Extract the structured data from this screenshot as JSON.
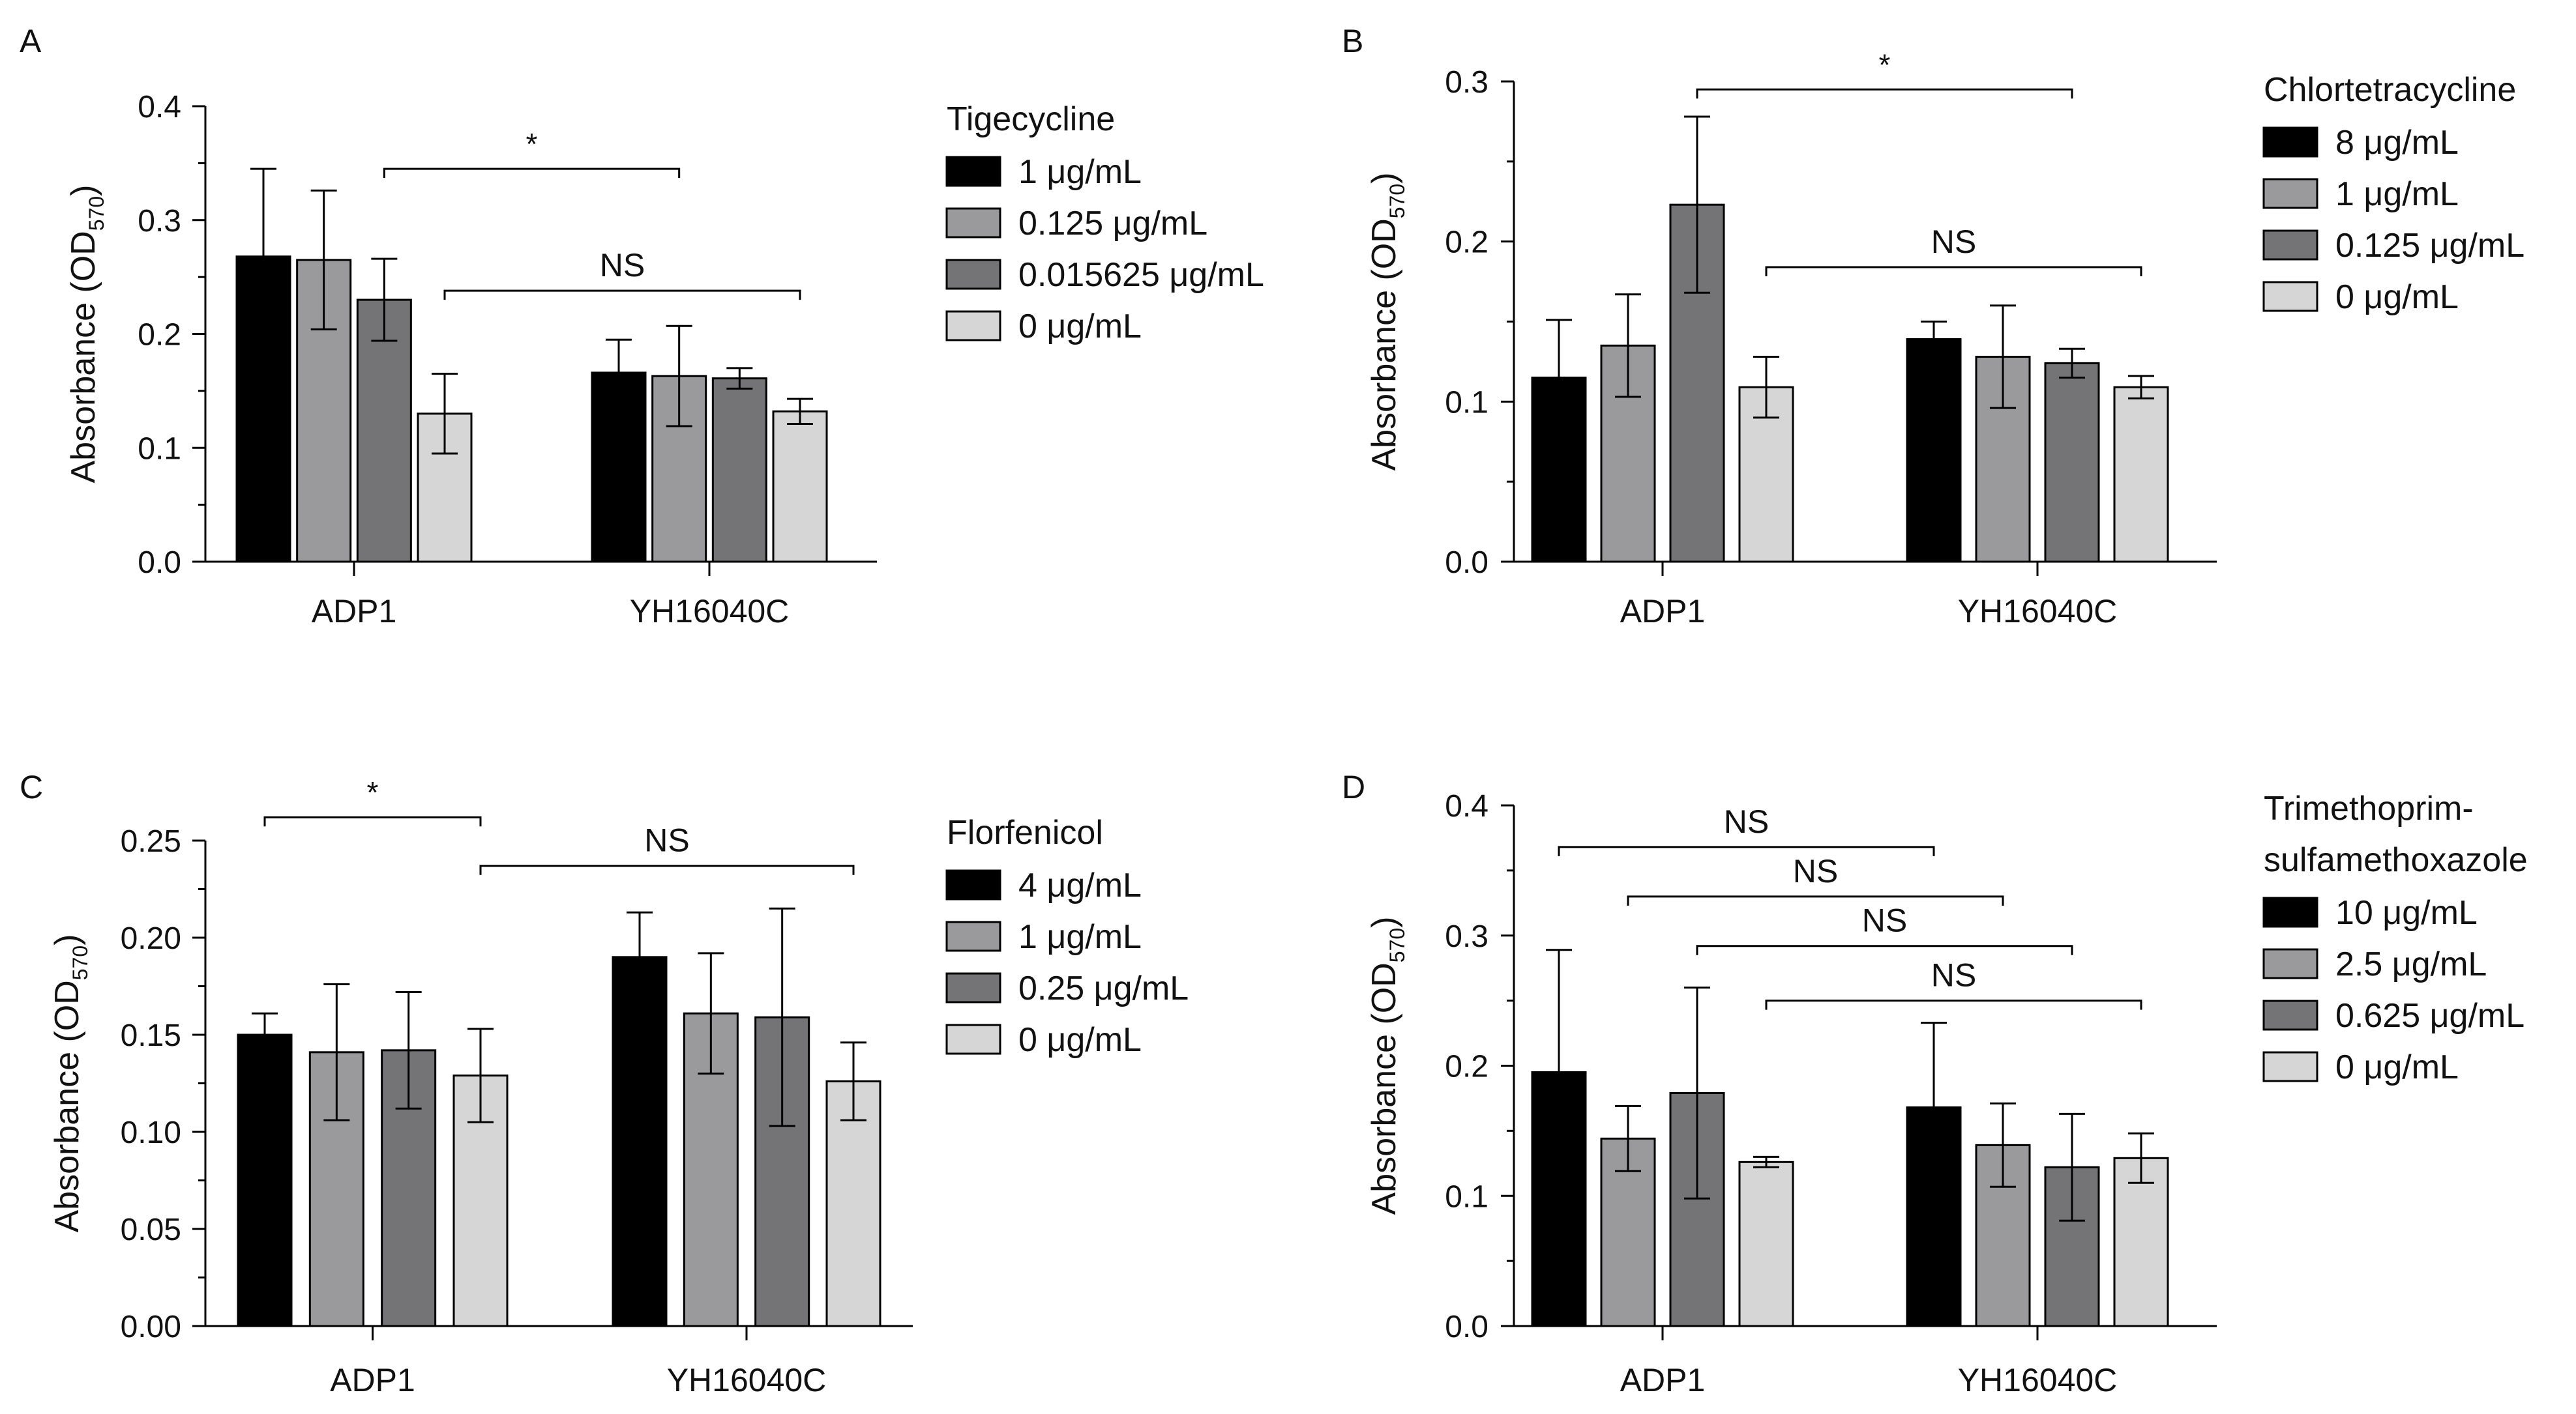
{
  "colors": {
    "series": [
      "#000000",
      "#9a9a9c",
      "#747476",
      "#d6d6d6"
    ],
    "stroke": "#000000",
    "background": "#ffffff"
  },
  "ylabel_main": "Absorbance",
  "ylabel_od": "(OD",
  "ylabel_sub": "570",
  "ylabel_close": ")",
  "chart_data": [
    {
      "panel": "A",
      "type": "bar",
      "categories": [
        "ADP1",
        "YH16040C"
      ],
      "legend_title": [
        "Tigecycline"
      ],
      "series": [
        {
          "name": "1 μg/mL",
          "values": [
            0.268,
            0.166
          ],
          "errors": [
            0.077,
            0.029
          ]
        },
        {
          "name": "0.125 μg/mL",
          "values": [
            0.265,
            0.163
          ],
          "errors": [
            0.061,
            0.044
          ]
        },
        {
          "name": "0.015625 μg/mL",
          "values": [
            0.23,
            0.161
          ],
          "errors": [
            0.036,
            0.009
          ]
        },
        {
          "name": "0 μg/mL",
          "values": [
            0.13,
            0.132
          ],
          "errors": [
            0.035,
            0.011
          ]
        }
      ],
      "ylim": [
        0,
        0.4
      ],
      "yticks": [
        0,
        0.1,
        0.2,
        0.3,
        0.4
      ],
      "ytick_labels": [
        "0.0",
        "0.1",
        "0.2",
        "0.3",
        "0.4"
      ],
      "annotations": [
        {
          "label": "*",
          "from": [
            0,
            2
          ],
          "to": [
            1,
            1
          ],
          "y": 0.345
        },
        {
          "label": "NS",
          "from": [
            0,
            3
          ],
          "to": [
            1,
            3
          ],
          "y": 0.238
        }
      ]
    },
    {
      "panel": "B",
      "type": "bar",
      "categories": [
        "ADP1",
        "YH16040C"
      ],
      "legend_title": [
        "Chlortetracycline"
      ],
      "series": [
        {
          "name": "8 μg/mL",
          "values": [
            0.115,
            0.139
          ],
          "errors": [
            0.036,
            0.011
          ]
        },
        {
          "name": "1 μg/mL",
          "values": [
            0.135,
            0.128
          ],
          "errors": [
            0.032,
            0.032
          ]
        },
        {
          "name": "0.125 μg/mL",
          "values": [
            0.223,
            0.124
          ],
          "errors": [
            0.055,
            0.009
          ]
        },
        {
          "name": "0 μg/mL",
          "values": [
            0.109,
            0.109
          ],
          "errors": [
            0.019,
            0.007
          ]
        }
      ],
      "ylim": [
        0,
        0.3
      ],
      "yticks": [
        0,
        0.1,
        0.2,
        0.3
      ],
      "ytick_labels": [
        "0.0",
        "0.1",
        "0.2",
        "0.3"
      ],
      "annotations": [
        {
          "label": "*",
          "from": [
            0,
            2
          ],
          "to": [
            1,
            2
          ],
          "y": 0.295
        },
        {
          "label": "NS",
          "from": [
            0,
            3
          ],
          "to": [
            1,
            3
          ],
          "y": 0.184
        }
      ]
    },
    {
      "panel": "C",
      "type": "bar",
      "categories": [
        "ADP1",
        "YH16040C"
      ],
      "legend_title": [
        "Florfenicol"
      ],
      "series": [
        {
          "name": "4 μg/mL",
          "values": [
            0.15,
            0.19
          ],
          "errors": [
            0.011,
            0.023
          ]
        },
        {
          "name": "1 μg/mL",
          "values": [
            0.141,
            0.161
          ],
          "errors": [
            0.035,
            0.031
          ]
        },
        {
          "name": "0.25 μg/mL",
          "values": [
            0.142,
            0.159
          ],
          "errors": [
            0.03,
            0.056
          ]
        },
        {
          "name": "0 μg/mL",
          "values": [
            0.129,
            0.126
          ],
          "errors": [
            0.024,
            0.02
          ]
        }
      ],
      "ylim": [
        0,
        0.25
      ],
      "yticks": [
        0,
        0.05,
        0.1,
        0.15,
        0.2,
        0.25
      ],
      "ytick_labels": [
        "0.00",
        "0.05",
        "0.10",
        "0.15",
        "0.20",
        "0.25"
      ],
      "annotations": [
        {
          "label": "*",
          "from": [
            0,
            0
          ],
          "to": [
            0,
            3
          ],
          "y": 0.262
        },
        {
          "label": "NS",
          "from": [
            0,
            3
          ],
          "to": [
            1,
            3
          ],
          "y": 0.237
        }
      ]
    },
    {
      "panel": "D",
      "type": "bar",
      "categories": [
        "ADP1",
        "YH16040C"
      ],
      "legend_title": [
        "Trimethoprim-",
        "sulfamethoxazole"
      ],
      "series": [
        {
          "name": "10 μg/mL",
          "values": [
            0.195,
            0.168
          ],
          "errors": [
            0.094,
            0.065
          ]
        },
        {
          "name": "2.5 μg/mL",
          "values": [
            0.144,
            0.139
          ],
          "errors": [
            0.025,
            0.032
          ]
        },
        {
          "name": "0.625 μg/mL",
          "values": [
            0.179,
            0.122
          ],
          "errors": [
            0.081,
            0.041
          ]
        },
        {
          "name": "0 μg/mL",
          "values": [
            0.126,
            0.129
          ],
          "errors": [
            0.004,
            0.019
          ]
        }
      ],
      "ylim": [
        0,
        0.4
      ],
      "yticks": [
        0,
        0.1,
        0.2,
        0.3,
        0.4
      ],
      "ytick_labels": [
        "0.0",
        "0.1",
        "0.2",
        "0.3",
        "0.4"
      ],
      "annotations": [
        {
          "label": "NS",
          "from": [
            0,
            0
          ],
          "to": [
            1,
            0
          ],
          "y": 0.368
        },
        {
          "label": "NS",
          "from": [
            0,
            1
          ],
          "to": [
            1,
            1
          ],
          "y": 0.33
        },
        {
          "label": "NS",
          "from": [
            0,
            2
          ],
          "to": [
            1,
            2
          ],
          "y": 0.292
        },
        {
          "label": "NS",
          "from": [
            0,
            3
          ],
          "to": [
            1,
            3
          ],
          "y": 0.25
        }
      ]
    }
  ]
}
